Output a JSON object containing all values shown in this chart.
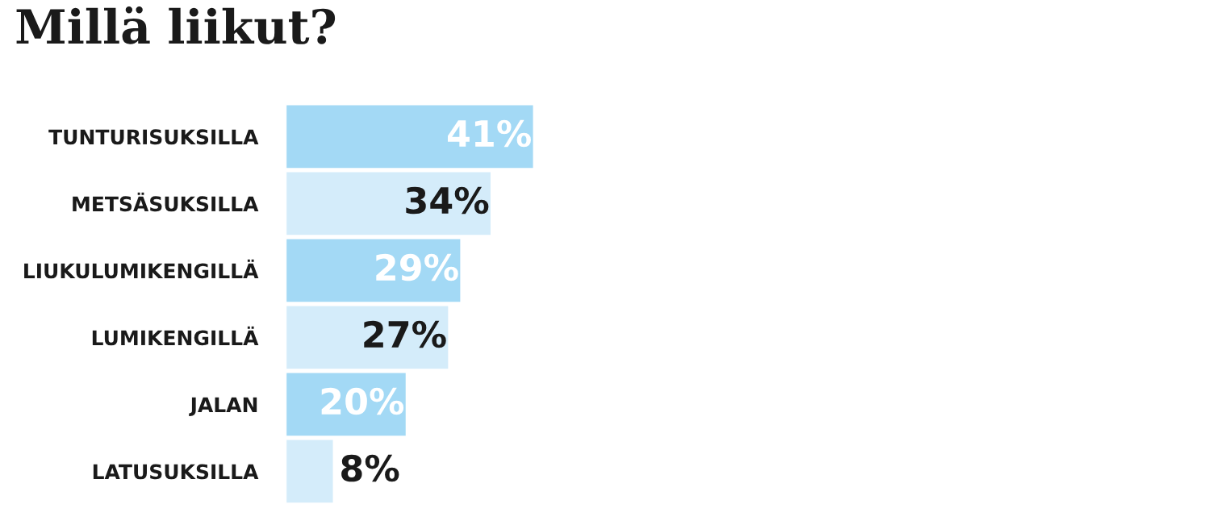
{
  "chart_data": {
    "type": "bar",
    "orientation": "horizontal",
    "title": "Millä liikut?",
    "categories": [
      "TUNTURISUKSILLA",
      "METSÄSUKSILLA",
      "LIUKULUMIKENGILLÄ",
      "LUMIKENGILLÄ",
      "JALAN",
      "LATUSUKSILLA"
    ],
    "values": [
      41,
      34,
      29,
      27,
      20,
      8
    ],
    "value_labels": [
      "41%",
      "34%",
      "29%",
      "27%",
      "20%",
      "8%"
    ],
    "colors": [
      "#a3d9f5",
      "#d4ecfa",
      "#a3d9f5",
      "#d4ecfa",
      "#a3d9f5",
      "#d4ecfa"
    ],
    "tick_labels": "y",
    "grid": false,
    "legend": false
  }
}
